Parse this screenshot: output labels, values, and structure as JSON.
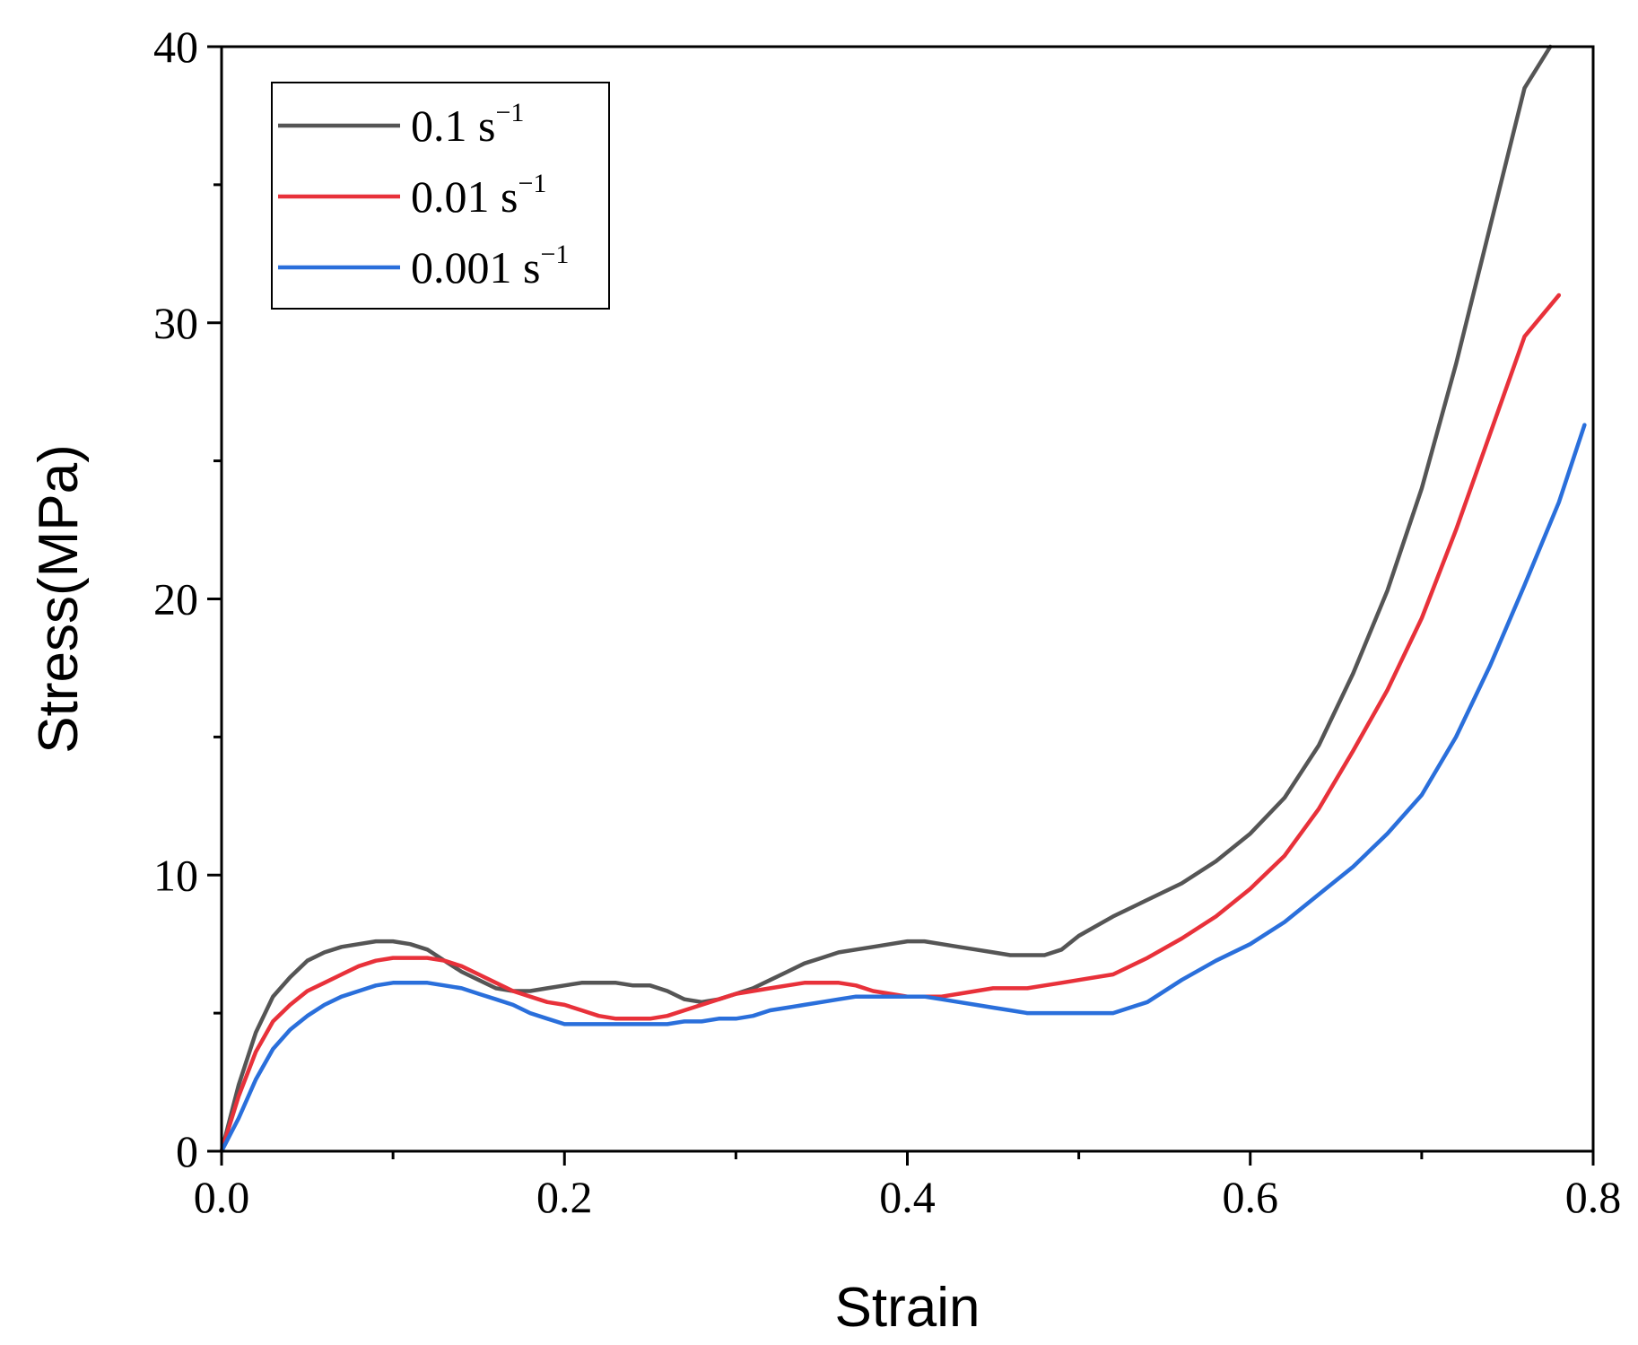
{
  "chart_data": {
    "type": "line",
    "title": "",
    "xlabel": "Strain",
    "ylabel": "Stress(MPa)",
    "xlim": [
      0.0,
      0.8
    ],
    "ylim": [
      0,
      40
    ],
    "xticks": [
      {
        "value": 0.0,
        "label": "0.0"
      },
      {
        "value": 0.2,
        "label": "0.2"
      },
      {
        "value": 0.4,
        "label": "0.4"
      },
      {
        "value": 0.6,
        "label": "0.6"
      },
      {
        "value": 0.8,
        "label": "0.8"
      }
    ],
    "yticks": [
      {
        "value": 0,
        "label": "0"
      },
      {
        "value": 10,
        "label": "10"
      },
      {
        "value": 20,
        "label": "20"
      },
      {
        "value": 30,
        "label": "30"
      },
      {
        "value": 40,
        "label": "40"
      }
    ],
    "x_minor_step": 0.1,
    "y_minor_step": 5,
    "grid": false,
    "legend_position": "top-left",
    "series": [
      {
        "name": "0.1 s",
        "superscript": "−1",
        "color": "#555555",
        "x": [
          0,
          0.01,
          0.02,
          0.03,
          0.04,
          0.05,
          0.06,
          0.07,
          0.08,
          0.09,
          0.1,
          0.11,
          0.12,
          0.13,
          0.14,
          0.15,
          0.16,
          0.17,
          0.18,
          0.19,
          0.2,
          0.21,
          0.22,
          0.23,
          0.24,
          0.25,
          0.26,
          0.27,
          0.28,
          0.29,
          0.3,
          0.31,
          0.32,
          0.33,
          0.34,
          0.35,
          0.36,
          0.37,
          0.38,
          0.39,
          0.4,
          0.41,
          0.42,
          0.43,
          0.44,
          0.45,
          0.46,
          0.47,
          0.48,
          0.49,
          0.5,
          0.52,
          0.54,
          0.56,
          0.58,
          0.6,
          0.62,
          0.64,
          0.66,
          0.68,
          0.7,
          0.72,
          0.74,
          0.76,
          0.775
        ],
        "y": [
          0,
          2.4,
          4.3,
          5.6,
          6.3,
          6.9,
          7.2,
          7.4,
          7.5,
          7.6,
          7.6,
          7.5,
          7.3,
          6.9,
          6.5,
          6.2,
          5.9,
          5.8,
          5.8,
          5.9,
          6.0,
          6.1,
          6.1,
          6.1,
          6.0,
          6.0,
          5.8,
          5.5,
          5.4,
          5.5,
          5.7,
          5.9,
          6.2,
          6.5,
          6.8,
          7.0,
          7.2,
          7.3,
          7.4,
          7.5,
          7.6,
          7.6,
          7.5,
          7.4,
          7.3,
          7.2,
          7.1,
          7.1,
          7.1,
          7.3,
          7.8,
          8.5,
          9.1,
          9.7,
          10.5,
          11.5,
          12.8,
          14.7,
          17.3,
          20.3,
          24.0,
          28.5,
          33.5,
          38.5,
          40.0
        ]
      },
      {
        "name": "0.01 s",
        "superscript": "−1",
        "color": "#e8313a",
        "x": [
          0,
          0.01,
          0.02,
          0.03,
          0.04,
          0.05,
          0.06,
          0.07,
          0.08,
          0.09,
          0.1,
          0.11,
          0.12,
          0.13,
          0.14,
          0.15,
          0.16,
          0.17,
          0.18,
          0.19,
          0.2,
          0.21,
          0.22,
          0.23,
          0.24,
          0.25,
          0.26,
          0.27,
          0.28,
          0.29,
          0.3,
          0.31,
          0.32,
          0.33,
          0.34,
          0.35,
          0.36,
          0.37,
          0.38,
          0.39,
          0.4,
          0.41,
          0.42,
          0.43,
          0.44,
          0.45,
          0.46,
          0.47,
          0.48,
          0.49,
          0.5,
          0.52,
          0.54,
          0.56,
          0.58,
          0.6,
          0.62,
          0.64,
          0.66,
          0.68,
          0.7,
          0.72,
          0.74,
          0.76,
          0.78
        ],
        "y": [
          0,
          2.0,
          3.6,
          4.7,
          5.3,
          5.8,
          6.1,
          6.4,
          6.7,
          6.9,
          7.0,
          7.0,
          7.0,
          6.9,
          6.7,
          6.4,
          6.1,
          5.8,
          5.6,
          5.4,
          5.3,
          5.1,
          4.9,
          4.8,
          4.8,
          4.8,
          4.9,
          5.1,
          5.3,
          5.5,
          5.7,
          5.8,
          5.9,
          6.0,
          6.1,
          6.1,
          6.1,
          6.0,
          5.8,
          5.7,
          5.6,
          5.6,
          5.6,
          5.7,
          5.8,
          5.9,
          5.9,
          5.9,
          6.0,
          6.1,
          6.2,
          6.4,
          7.0,
          7.7,
          8.5,
          9.5,
          10.7,
          12.4,
          14.5,
          16.7,
          19.3,
          22.5,
          26.0,
          29.5,
          31.0
        ]
      },
      {
        "name": "0.001 s",
        "superscript": "−1",
        "color": "#2a6fdb",
        "x": [
          0,
          0.01,
          0.02,
          0.03,
          0.04,
          0.05,
          0.06,
          0.07,
          0.08,
          0.09,
          0.1,
          0.11,
          0.12,
          0.13,
          0.14,
          0.15,
          0.16,
          0.17,
          0.18,
          0.19,
          0.2,
          0.21,
          0.22,
          0.23,
          0.24,
          0.25,
          0.26,
          0.27,
          0.28,
          0.29,
          0.3,
          0.31,
          0.32,
          0.33,
          0.34,
          0.35,
          0.36,
          0.37,
          0.38,
          0.39,
          0.4,
          0.41,
          0.42,
          0.43,
          0.44,
          0.45,
          0.46,
          0.47,
          0.48,
          0.49,
          0.5,
          0.52,
          0.54,
          0.56,
          0.58,
          0.6,
          0.62,
          0.64,
          0.66,
          0.68,
          0.7,
          0.72,
          0.74,
          0.76,
          0.78,
          0.795
        ],
        "y": [
          0,
          1.2,
          2.6,
          3.7,
          4.4,
          4.9,
          5.3,
          5.6,
          5.8,
          6.0,
          6.1,
          6.1,
          6.1,
          6.0,
          5.9,
          5.7,
          5.5,
          5.3,
          5.0,
          4.8,
          4.6,
          4.6,
          4.6,
          4.6,
          4.6,
          4.6,
          4.6,
          4.7,
          4.7,
          4.8,
          4.8,
          4.9,
          5.1,
          5.2,
          5.3,
          5.4,
          5.5,
          5.6,
          5.6,
          5.6,
          5.6,
          5.6,
          5.5,
          5.4,
          5.3,
          5.2,
          5.1,
          5.0,
          5.0,
          5.0,
          5.0,
          5.0,
          5.4,
          6.2,
          6.9,
          7.5,
          8.3,
          9.3,
          10.3,
          11.5,
          12.9,
          15.0,
          17.6,
          20.5,
          23.5,
          26.3
        ]
      }
    ]
  }
}
